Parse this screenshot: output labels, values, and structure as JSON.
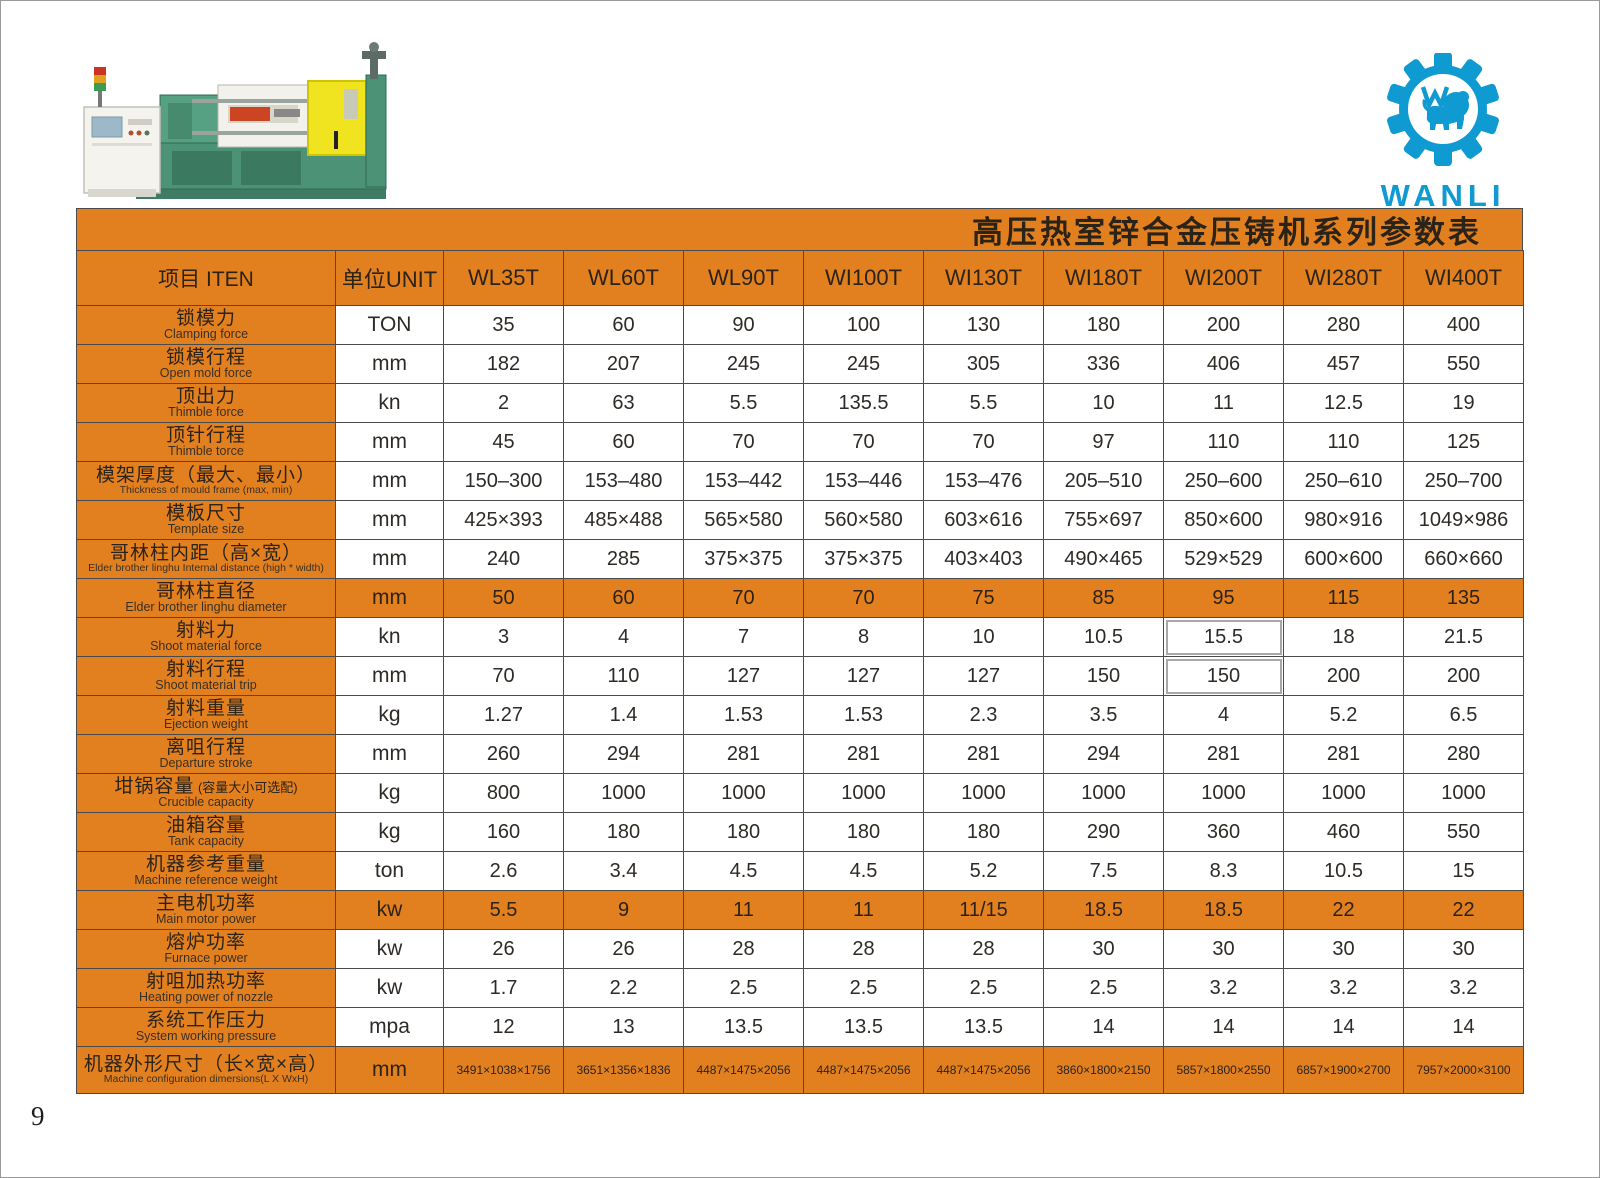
{
  "page_number": "9",
  "logo": {
    "brand": "WANLI",
    "color": "#0f9ad2",
    "gear_icon": "gear-with-lion"
  },
  "colors": {
    "accent_orange": "#e2801f",
    "brand_blue": "#0f9ad2",
    "grid_line": "#4a4a4a"
  },
  "title": "高压热室锌合金压铸机系列参数表",
  "chart_data": {
    "type": "table",
    "title": "高压热室锌合金压铸机系列参数表",
    "columns": [
      "项目 ITEN",
      "单位UNIT",
      "WL35T",
      "WL60T",
      "WL90T",
      "WI100T",
      "WI130T",
      "WI180T",
      "WI200T",
      "WI280T",
      "WI400T"
    ],
    "rows": [
      {
        "label_zh": "锁模力",
        "label_en": "Clamping force",
        "unit": "TON",
        "values": [
          "35",
          "60",
          "90",
          "100",
          "130",
          "180",
          "200",
          "280",
          "400"
        ],
        "highlight": false
      },
      {
        "label_zh": "锁模行程",
        "label_en": "Open mold force",
        "unit": "mm",
        "values": [
          "182",
          "207",
          "245",
          "245",
          "305",
          "336",
          "406",
          "457",
          "550"
        ],
        "highlight": false
      },
      {
        "label_zh": "顶出力",
        "label_en": "Thimble force",
        "unit": "kn",
        "values": [
          "2",
          "63",
          "5.5",
          "135.5",
          "5.5",
          "10",
          "11",
          "12.5",
          "19"
        ],
        "highlight": false
      },
      {
        "label_zh": "顶针行程",
        "label_en": "Thimble torce",
        "unit": "mm",
        "values": [
          "45",
          "60",
          "70",
          "70",
          "70",
          "97",
          "110",
          "110",
          "125"
        ],
        "highlight": false
      },
      {
        "label_zh": "模架厚度（最大、最小）",
        "label_en": "Thickness of mould frame (max, min)",
        "unit": "mm",
        "values": [
          "150–300",
          "153–480",
          "153–442",
          "153–446",
          "153–476",
          "205–510",
          "250–600",
          "250–610",
          "250–700"
        ],
        "highlight": false
      },
      {
        "label_zh": "模板尺寸",
        "label_en": "Template size",
        "unit": "mm",
        "values": [
          "425×393",
          "485×488",
          "565×580",
          "560×580",
          "603×616",
          "755×697",
          "850×600",
          "980×916",
          "1049×986"
        ],
        "highlight": false
      },
      {
        "label_zh": "哥林柱内距（高×宽）",
        "label_en": "Elder brother linghu Internal distance (high * width)",
        "unit": "mm",
        "values": [
          "240",
          "285",
          "375×375",
          "375×375",
          "403×403",
          "490×465",
          "529×529",
          "600×600",
          "660×660"
        ],
        "highlight": false
      },
      {
        "label_zh": "哥林柱直径",
        "label_en": "Elder brother linghu diameter",
        "unit": "mm",
        "values": [
          "50",
          "60",
          "70",
          "70",
          "75",
          "85",
          "95",
          "115",
          "135"
        ],
        "highlight": true
      },
      {
        "label_zh": "射料力",
        "label_en": "Shoot material force",
        "unit": "kn",
        "values": [
          "3",
          "4",
          "7",
          "8",
          "10",
          "10.5",
          "15.5",
          "18",
          "21.5"
        ],
        "highlight": false
      },
      {
        "label_zh": "射料行程",
        "label_en": "Shoot material trip",
        "unit": "mm",
        "values": [
          "70",
          "110",
          "127",
          "127",
          "127",
          "150",
          "150",
          "200",
          "200"
        ],
        "highlight": false
      },
      {
        "label_zh": "射料重量",
        "label_en": "Ejection weight",
        "unit": "kg",
        "values": [
          "1.27",
          "1.4",
          "1.53",
          "1.53",
          "2.3",
          "3.5",
          "4",
          "5.2",
          "6.5"
        ],
        "highlight": false
      },
      {
        "label_zh": "离咀行程",
        "label_en": "Departure stroke",
        "unit": "mm",
        "values": [
          "260",
          "294",
          "281",
          "281",
          "281",
          "294",
          "281",
          "281",
          "280"
        ],
        "highlight": false
      },
      {
        "label_zh": "坩锅容量",
        "label_note": "(容量大小可选配)",
        "label_en": "Crucible capacity",
        "unit": "kg",
        "values": [
          "800",
          "1000",
          "1000",
          "1000",
          "1000",
          "1000",
          "1000",
          "1000",
          "1000"
        ],
        "highlight": false
      },
      {
        "label_zh": "油箱容量",
        "label_en": "Tank capacity",
        "unit": "kg",
        "values": [
          "160",
          "180",
          "180",
          "180",
          "180",
          "290",
          "360",
          "460",
          "550"
        ],
        "highlight": false
      },
      {
        "label_zh": "机器参考重量",
        "label_en": "Machine reference weight",
        "unit": "ton",
        "values": [
          "2.6",
          "3.4",
          "4.5",
          "4.5",
          "5.2",
          "7.5",
          "8.3",
          "10.5",
          "15"
        ],
        "highlight": false
      },
      {
        "label_zh": "主电机功率",
        "label_en": "Main motor power",
        "unit": "kw",
        "values": [
          "5.5",
          "9",
          "11",
          "11",
          "11/15",
          "18.5",
          "18.5",
          "22",
          "22"
        ],
        "highlight": true
      },
      {
        "label_zh": "熔炉功率",
        "label_en": "Furnace power",
        "unit": "kw",
        "values": [
          "26",
          "26",
          "28",
          "28",
          "28",
          "30",
          "30",
          "30",
          "30"
        ],
        "highlight": false
      },
      {
        "label_zh": "射咀加热功率",
        "label_en": "Heating power of nozzle",
        "unit": "kw",
        "values": [
          "1.7",
          "2.2",
          "2.5",
          "2.5",
          "2.5",
          "2.5",
          "3.2",
          "3.2",
          "3.2"
        ],
        "highlight": false
      },
      {
        "label_zh": "系统工作压力",
        "label_en": "System working pressure",
        "unit": "mpa",
        "values": [
          "12",
          "13",
          "13.5",
          "13.5",
          "13.5",
          "14",
          "14",
          "14",
          "14"
        ],
        "highlight": false
      },
      {
        "label_zh": "机器外形尺寸（长×宽×高）",
        "label_en": "Machine configuration dimersions(L X WxH)",
        "unit": "mm",
        "values": [
          "3491×1038×1756",
          "3651×1356×1836",
          "4487×1475×2056",
          "4487×1475×2056",
          "4487×1475×2056",
          "3860×1800×2150",
          "5857×1800×2550",
          "6857×1900×2700",
          "7957×2000×3100"
        ],
        "highlight": true,
        "last": true
      }
    ],
    "boxed_cells": [
      [
        8,
        6
      ],
      [
        9,
        6
      ]
    ]
  }
}
